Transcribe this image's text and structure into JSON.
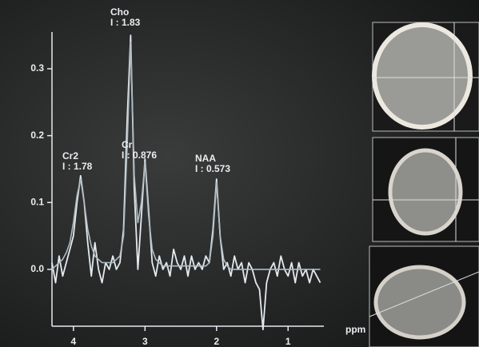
{
  "chart_data": {
    "type": "line",
    "x": [
      4.3,
      4.25,
      4.2,
      4.15,
      4.1,
      4.05,
      4.0,
      3.95,
      3.9,
      3.85,
      3.8,
      3.75,
      3.7,
      3.65,
      3.6,
      3.55,
      3.5,
      3.45,
      3.4,
      3.35,
      3.3,
      3.25,
      3.2,
      3.15,
      3.1,
      3.05,
      3.0,
      2.95,
      2.9,
      2.85,
      2.8,
      2.75,
      2.7,
      2.65,
      2.6,
      2.55,
      2.5,
      2.45,
      2.4,
      2.35,
      2.3,
      2.25,
      2.2,
      2.15,
      2.1,
      2.05,
      2.0,
      1.95,
      1.9,
      1.85,
      1.8,
      1.75,
      1.7,
      1.65,
      1.6,
      1.55,
      1.5,
      1.45,
      1.4,
      1.35,
      1.3,
      1.25,
      1.2,
      1.15,
      1.1,
      1.05,
      1.0,
      0.95,
      0.9,
      0.85,
      0.8,
      0.75,
      0.7,
      0.65,
      0.6,
      0.55
    ],
    "series": [
      {
        "color": "#e3eaee",
        "values": [
          0.01,
          -0.02,
          0.02,
          -0.01,
          0.01,
          0.03,
          0.05,
          0.1,
          0.14,
          0.1,
          0.04,
          -0.01,
          0.04,
          0.0,
          -0.02,
          0.01,
          0.0,
          0.02,
          0.0,
          0.01,
          0.06,
          0.22,
          0.35,
          0.12,
          0.0,
          0.08,
          0.165,
          0.09,
          0.01,
          -0.01,
          0.02,
          0.0,
          0.01,
          -0.01,
          0.03,
          0.01,
          0.0,
          0.02,
          -0.01,
          0.02,
          0.0,
          0.01,
          0.0,
          0.02,
          0.01,
          0.06,
          0.135,
          0.05,
          0.0,
          0.01,
          -0.01,
          0.02,
          0.0,
          0.01,
          -0.02,
          0.01,
          0.0,
          -0.02,
          -0.03,
          -0.09,
          -0.02,
          0.0,
          0.01,
          -0.01,
          0.02,
          0.0,
          -0.01,
          0.01,
          -0.02,
          0.01,
          -0.01,
          0.0,
          -0.02,
          0.0,
          -0.01,
          -0.02
        ]
      },
      {
        "color": "#aebcc2",
        "values": [
          0.0,
          0.005,
          0.01,
          0.015,
          0.025,
          0.04,
          0.07,
          0.11,
          0.135,
          0.1,
          0.06,
          0.035,
          0.02,
          0.015,
          0.01,
          0.01,
          0.01,
          0.01,
          0.015,
          0.02,
          0.05,
          0.18,
          0.34,
          0.14,
          0.07,
          0.1,
          0.16,
          0.08,
          0.03,
          0.015,
          0.01,
          0.005,
          0.005,
          0.005,
          0.005,
          0.005,
          0.005,
          0.005,
          0.005,
          0.005,
          0.005,
          0.005,
          0.005,
          0.005,
          0.01,
          0.05,
          0.13,
          0.05,
          0.015,
          0.005,
          0.0,
          0.0,
          0.0,
          0.0,
          0.0,
          0.0,
          0.0,
          0.0,
          0.0,
          0.0,
          0.0,
          0.0,
          0.0,
          0.0,
          0.0,
          0.0,
          0.0,
          0.0,
          0.0,
          0.0,
          0.0,
          0.0,
          0.0,
          0.0,
          0.0,
          0.0
        ]
      }
    ],
    "xlim": [
      4.3,
      0.5
    ],
    "xticks": [
      4,
      3,
      2,
      1
    ],
    "xlabel": "ppm",
    "ylim": [
      -0.085,
      0.355
    ],
    "yticks": [
      {
        "value": 0,
        "label": "0.0"
      },
      {
        "value": 0.1,
        "label": "0.1"
      },
      {
        "value": 0.2,
        "label": "0.2"
      },
      {
        "value": 0.3,
        "label": "0.3"
      }
    ],
    "annotations": [
      {
        "name": "Cr2",
        "text": "I : 1.78"
      },
      {
        "name": "Cho",
        "text": "I : 1.83"
      },
      {
        "name": "Cr",
        "text": "I : 0.876"
      },
      {
        "name": "NAA",
        "text": "I : 0.573"
      }
    ]
  }
}
